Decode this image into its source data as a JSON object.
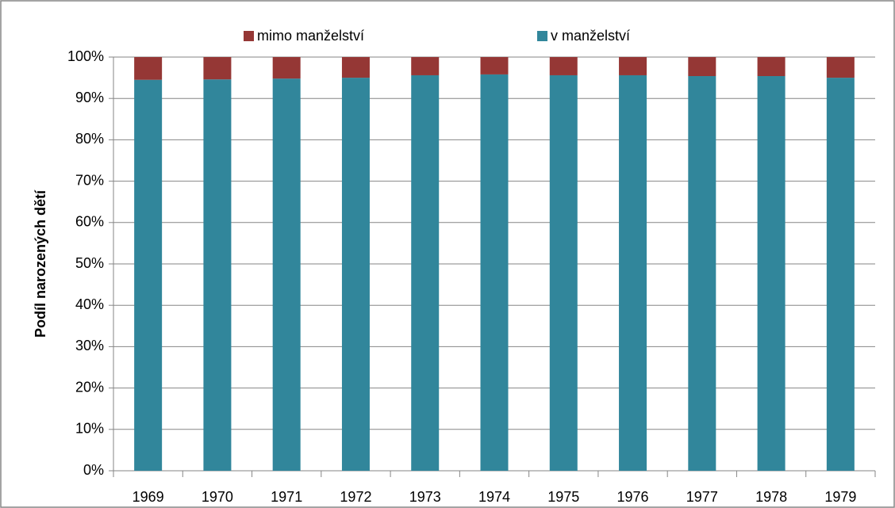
{
  "chart_data": {
    "type": "stacked_bar",
    "ylabel": "Podíl narozených dětí",
    "categories": [
      "1969",
      "1970",
      "1971",
      "1972",
      "1973",
      "1974",
      "1975",
      "1976",
      "1977",
      "1978",
      "1979"
    ],
    "series": [
      {
        "name": "v manželství",
        "color": "#31869b",
        "values": [
          94.5,
          94.6,
          94.8,
          95.0,
          95.6,
          95.8,
          95.6,
          95.6,
          95.4,
          95.4,
          95.0
        ]
      },
      {
        "name": "mimo manželství",
        "color": "#953735",
        "values": [
          5.5,
          5.4,
          5.2,
          5.0,
          4.4,
          4.2,
          4.4,
          4.4,
          4.6,
          4.6,
          5.0
        ]
      }
    ],
    "ylim": [
      0,
      100
    ],
    "yticks": [
      {
        "value": 0,
        "label": "0%"
      },
      {
        "value": 10,
        "label": "10%"
      },
      {
        "value": 20,
        "label": "20%"
      },
      {
        "value": 30,
        "label": "30%"
      },
      {
        "value": 40,
        "label": "40%"
      },
      {
        "value": 50,
        "label": "50%"
      },
      {
        "value": 60,
        "label": "60%"
      },
      {
        "value": 70,
        "label": "70%"
      },
      {
        "value": 80,
        "label": "80%"
      },
      {
        "value": 90,
        "label": "90%"
      },
      {
        "value": 100,
        "label": "100%"
      }
    ],
    "grid": true,
    "legend": "top"
  }
}
